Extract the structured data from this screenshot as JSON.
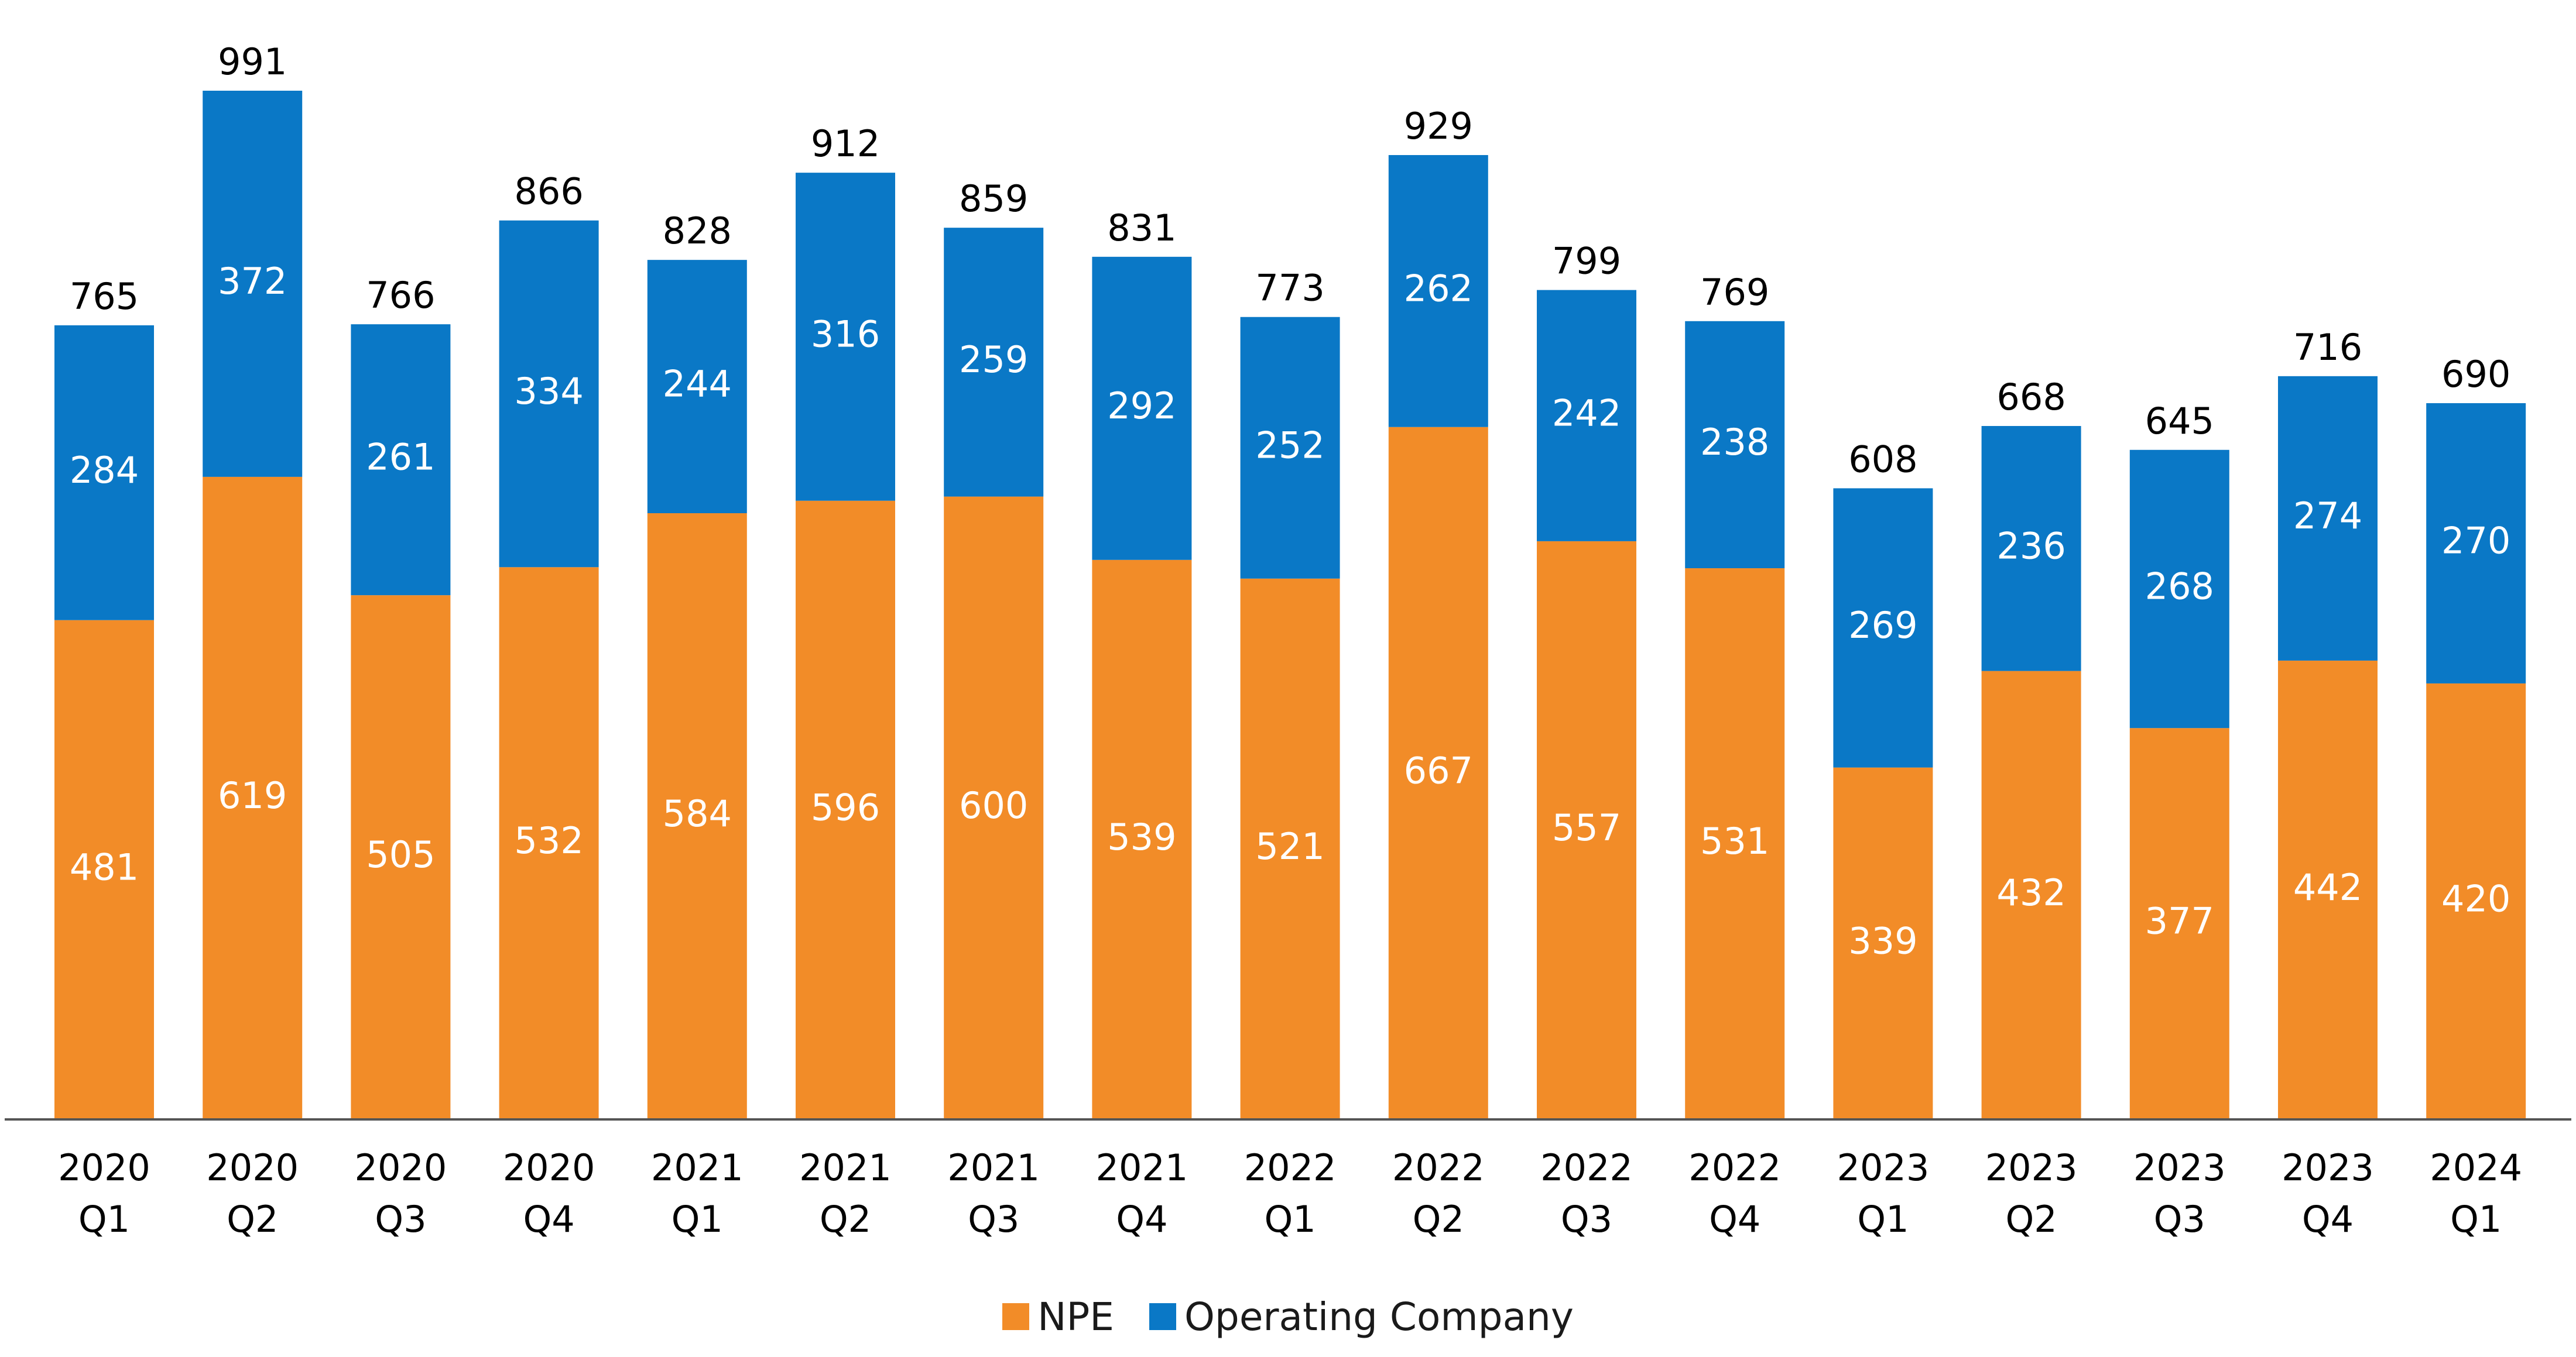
{
  "chart_data": {
    "type": "bar",
    "stacked": true,
    "categories": [
      [
        "2020",
        "Q1"
      ],
      [
        "2020",
        "Q2"
      ],
      [
        "2020",
        "Q3"
      ],
      [
        "2020",
        "Q4"
      ],
      [
        "2021",
        "Q1"
      ],
      [
        "2021",
        "Q2"
      ],
      [
        "2021",
        "Q3"
      ],
      [
        "2021",
        "Q4"
      ],
      [
        "2022",
        "Q1"
      ],
      [
        "2022",
        "Q2"
      ],
      [
        "2022",
        "Q3"
      ],
      [
        "2022",
        "Q4"
      ],
      [
        "2023",
        "Q1"
      ],
      [
        "2023",
        "Q2"
      ],
      [
        "2023",
        "Q3"
      ],
      [
        "2023",
        "Q4"
      ],
      [
        "2024",
        "Q1"
      ]
    ],
    "series": [
      {
        "name": "NPE",
        "color": "#F28C28",
        "values": [
          481,
          619,
          505,
          532,
          584,
          596,
          600,
          539,
          521,
          667,
          557,
          531,
          339,
          432,
          377,
          442,
          420
        ]
      },
      {
        "name": "Operating Company",
        "color": "#0A78C6",
        "values": [
          284,
          372,
          261,
          334,
          244,
          316,
          259,
          292,
          252,
          262,
          242,
          238,
          269,
          236,
          268,
          274,
          270
        ]
      }
    ],
    "totals": [
      765,
      991,
      766,
      866,
      828,
      912,
      859,
      831,
      773,
      929,
      799,
      769,
      608,
      668,
      645,
      716,
      690
    ],
    "title": "",
    "xlabel": "",
    "ylabel": "",
    "ylim": [
      0,
      1000
    ],
    "grid": false,
    "legend_position": "bottom-center"
  }
}
